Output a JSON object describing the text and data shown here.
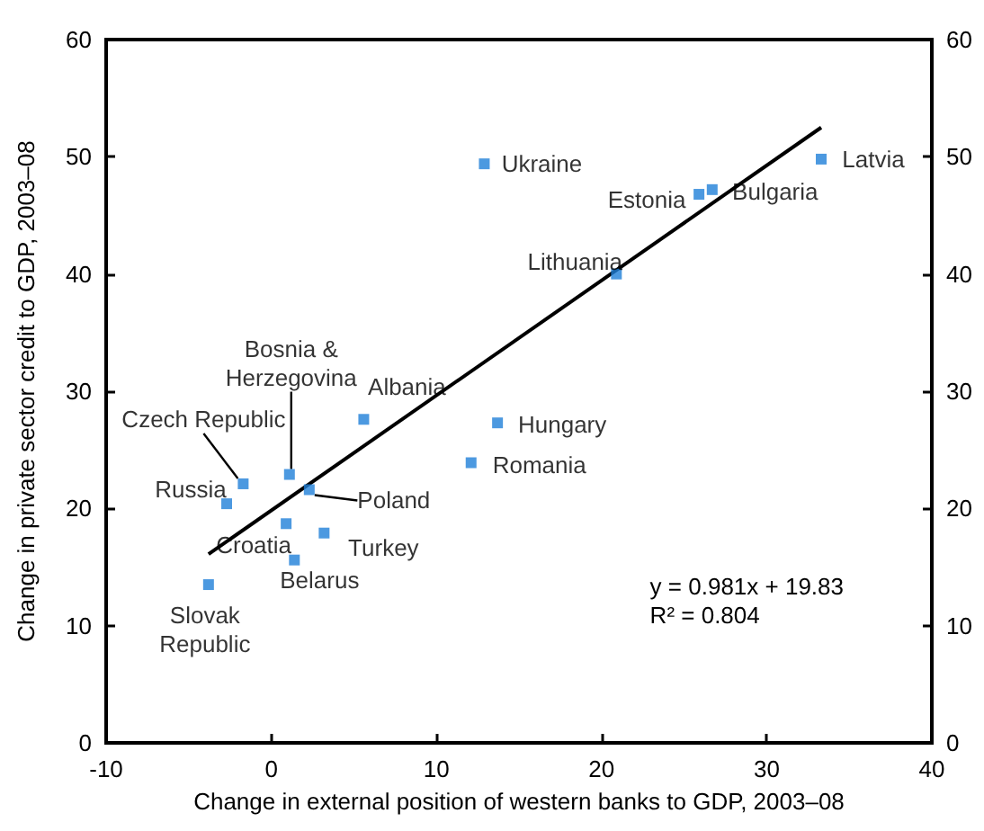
{
  "chart_data": {
    "type": "scatter",
    "xlabel": "Change in external position of western banks to GDP, 2003–08",
    "ylabel": "Change in private sector credit to GDP, 2003–08",
    "xlim": [
      -10,
      40
    ],
    "xticks": [
      -10,
      0,
      10,
      20,
      30,
      40
    ],
    "ylim": [
      0,
      60
    ],
    "yticks": [
      0,
      10,
      20,
      30,
      40,
      50,
      60
    ],
    "y2lim": [
      0,
      60
    ],
    "y2ticks": [
      0,
      10,
      20,
      30,
      40,
      50,
      60
    ],
    "grid": false,
    "marker": "square",
    "annotations": [
      "y = 0.981x + 19.83",
      "R² = 0.804"
    ],
    "series": [
      {
        "type": "scatter",
        "color": "#1f80d8",
        "x": [
          12.9,
          33.3,
          25.9,
          26.7,
          20.9,
          5.6,
          13.7,
          12.1,
          -1.7,
          1.1,
          2.3,
          -2.7,
          0.9,
          3.2,
          1.4,
          -3.8
        ],
        "values": [
          49.4,
          49.8,
          46.8,
          47.2,
          40.0,
          27.6,
          27.3,
          23.9,
          22.1,
          22.9,
          21.6,
          20.4,
          18.7,
          17.9,
          15.6,
          13.5
        ],
        "value_labels": [
          "Ukraine",
          "Latvia",
          "Estonia",
          "Bulgaria",
          "Lithuania",
          "Albania",
          "Hungary",
          "Romania",
          "Czech Republic",
          "Bosnia &\nHerzegovina",
          "Poland",
          "Russia",
          "Croatia",
          "Turkey",
          "Belarus",
          "Slovak\nRepublic"
        ]
      },
      {
        "type": "line",
        "color": "#000000",
        "marker": "none",
        "line_style": "solid",
        "x": [
          -3.8,
          33.3
        ],
        "values": [
          16.1,
          52.5
        ]
      }
    ]
  }
}
